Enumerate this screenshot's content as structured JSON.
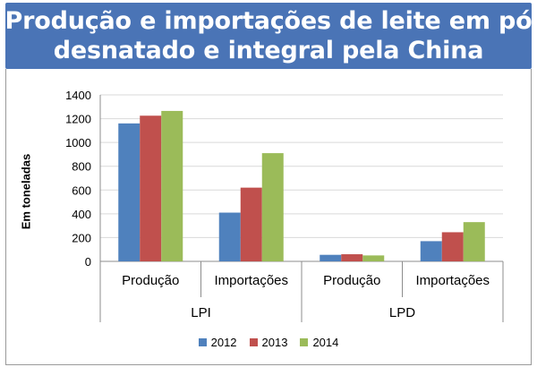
{
  "title": {
    "line1": "Produção e importações de leite em pó",
    "line2": "desnatado e integral pela China"
  },
  "chart_data": {
    "type": "bar",
    "title": "Produção e importações de leite em pó desnatado e integral pela China",
    "ylabel": "Em toneladas",
    "ylim": [
      0,
      1400
    ],
    "yticks": [
      "0",
      "200",
      "400",
      "600",
      "800",
      "1000",
      "1200",
      "1400"
    ],
    "groups": [
      {
        "label": "LPI",
        "categories": [
          "Produção",
          "Importações"
        ]
      },
      {
        "label": "LPD",
        "categories": [
          "Produção",
          "Importações"
        ]
      }
    ],
    "categories": [
      "Produção",
      "Importações",
      "Produção",
      "Importações"
    ],
    "series": [
      {
        "name": "2012",
        "color": "#4f81bd",
        "values": [
          1160,
          410,
          55,
          170
        ]
      },
      {
        "name": "2013",
        "color": "#c0504d",
        "values": [
          1225,
          620,
          60,
          245
        ]
      },
      {
        "name": "2014",
        "color": "#9bbb59",
        "values": [
          1265,
          910,
          50,
          330
        ]
      }
    ],
    "grid": true,
    "legend": "bottom"
  }
}
